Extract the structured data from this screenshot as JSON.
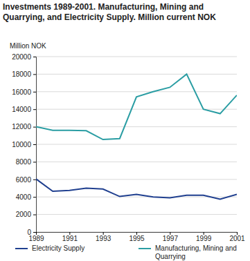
{
  "chart_data": {
    "type": "line",
    "title": "Investments 1989-2001. Manufacturing, Mining and Quarrying, and Electricity Supply. Million current NOK",
    "y_label": "Million NOK",
    "x": [
      1989,
      1990,
      1991,
      1992,
      1993,
      1994,
      1995,
      1996,
      1997,
      1998,
      1999,
      2000,
      2001
    ],
    "series": [
      {
        "name": "Electricity Supply",
        "color": "#1f3f8f",
        "values": [
          6050,
          4650,
          4750,
          5000,
          4900,
          4050,
          4300,
          4000,
          3900,
          4200,
          4200,
          3750,
          4300
        ]
      },
      {
        "name": "Manufacturing, Mining and Quarrying",
        "color": "#2a9da3",
        "values": [
          12000,
          11600,
          11600,
          11550,
          10550,
          10650,
          15400,
          16000,
          16500,
          18000,
          14000,
          13500,
          15600
        ]
      }
    ],
    "xlim": [
      1989,
      2001
    ],
    "xticks": [
      1989,
      1991,
      1993,
      1995,
      1997,
      1999,
      2001
    ],
    "ylim": [
      0,
      20000
    ],
    "yticks": [
      0,
      2000,
      4000,
      6000,
      8000,
      10000,
      12000,
      14000,
      16000,
      18000,
      20000
    ],
    "grid": true,
    "legend": "bottom"
  }
}
